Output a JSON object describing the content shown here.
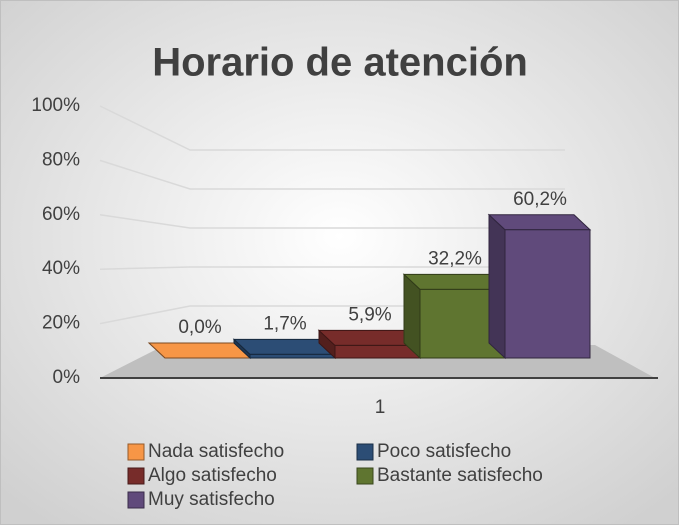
{
  "chart_data": {
    "type": "bar",
    "title": "Horario de atención",
    "categories": [
      "1"
    ],
    "series": [
      {
        "name": "Nada satisfecho",
        "color": "#f79646",
        "values": [
          0
        ],
        "value_labels": [
          "0,0%"
        ]
      },
      {
        "name": "Poco satisfecho",
        "color": "#2c4d75",
        "values": [
          1.7
        ],
        "value_labels": [
          "1,7%"
        ]
      },
      {
        "name": "Algo satisfecho",
        "color": "#772c2a",
        "values": [
          5.9
        ],
        "value_labels": [
          "5,9%"
        ]
      },
      {
        "name": "Bastante satisfecho",
        "color": "#5f7530",
        "values": [
          32.2
        ],
        "value_labels": [
          "32,2%"
        ]
      },
      {
        "name": "Muy satisfecho",
        "color": "#604a7b",
        "values": [
          60.2
        ],
        "value_labels": [
          "60,2%"
        ]
      }
    ],
    "ylim": [
      0,
      100
    ],
    "yticks": [
      {
        "value": 0,
        "label": "0%"
      },
      {
        "value": 20,
        "label": "20%"
      },
      {
        "value": 40,
        "label": "40%"
      },
      {
        "value": 60,
        "label": "60%"
      },
      {
        "value": 80,
        "label": "80%"
      },
      {
        "value": 100,
        "label": "100%"
      }
    ],
    "grid": true,
    "legend": "bottom"
  }
}
